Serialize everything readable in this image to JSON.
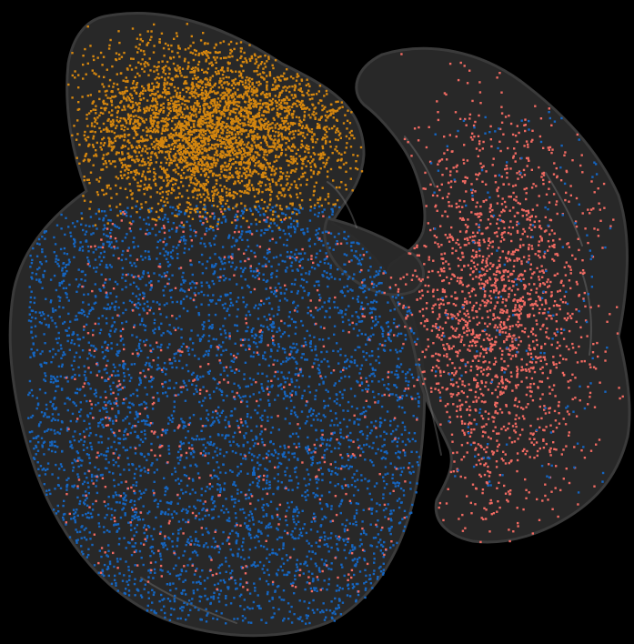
{
  "scene": {
    "background_color": "#000000",
    "tissue_fill": "#2a2a2a",
    "tissue_edge": "#3a3a3a",
    "membrane_highlight": "#8a8a8a"
  },
  "point_clouds": [
    {
      "id": "upper-cluster",
      "color": "#d4860f",
      "density": "very high"
    },
    {
      "id": "left-cluster",
      "color": "#1565c0",
      "density": "high"
    },
    {
      "id": "right-cluster",
      "color": "#f06a62",
      "density": "medium"
    }
  ]
}
